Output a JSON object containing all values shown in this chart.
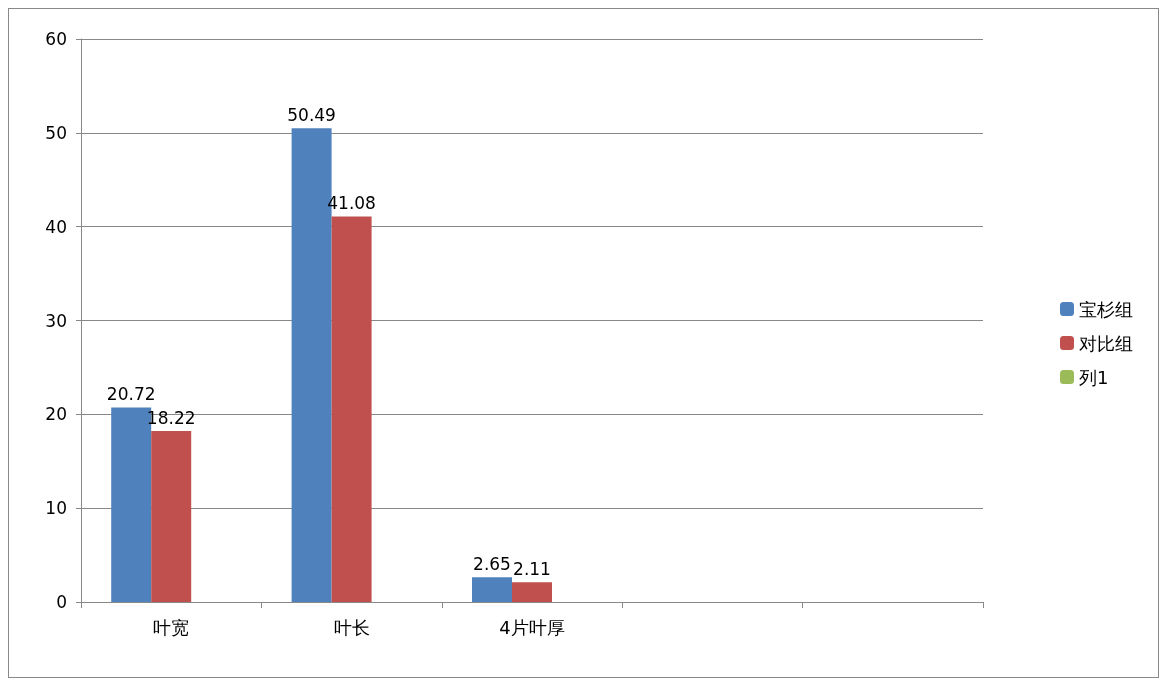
{
  "chart_data": {
    "type": "bar",
    "categories": [
      "叶宽",
      "叶长",
      "4片叶厚",
      null,
      null
    ],
    "series": [
      {
        "name": "宝杉组",
        "color": "#4f81bd",
        "values": [
          20.72,
          50.49,
          2.65,
          null,
          null
        ]
      },
      {
        "name": "对比组",
        "color": "#c0504d",
        "values": [
          18.22,
          41.08,
          2.11,
          null,
          null
        ]
      },
      {
        "name": "列1",
        "color": "#9bbb59",
        "values": [
          null,
          null,
          null,
          null,
          null
        ]
      }
    ],
    "ylim": [
      0,
      60
    ],
    "yticks": [
      0,
      10,
      20,
      30,
      40,
      50,
      60
    ],
    "grid": "y",
    "legend": "right",
    "data_labels": true
  }
}
